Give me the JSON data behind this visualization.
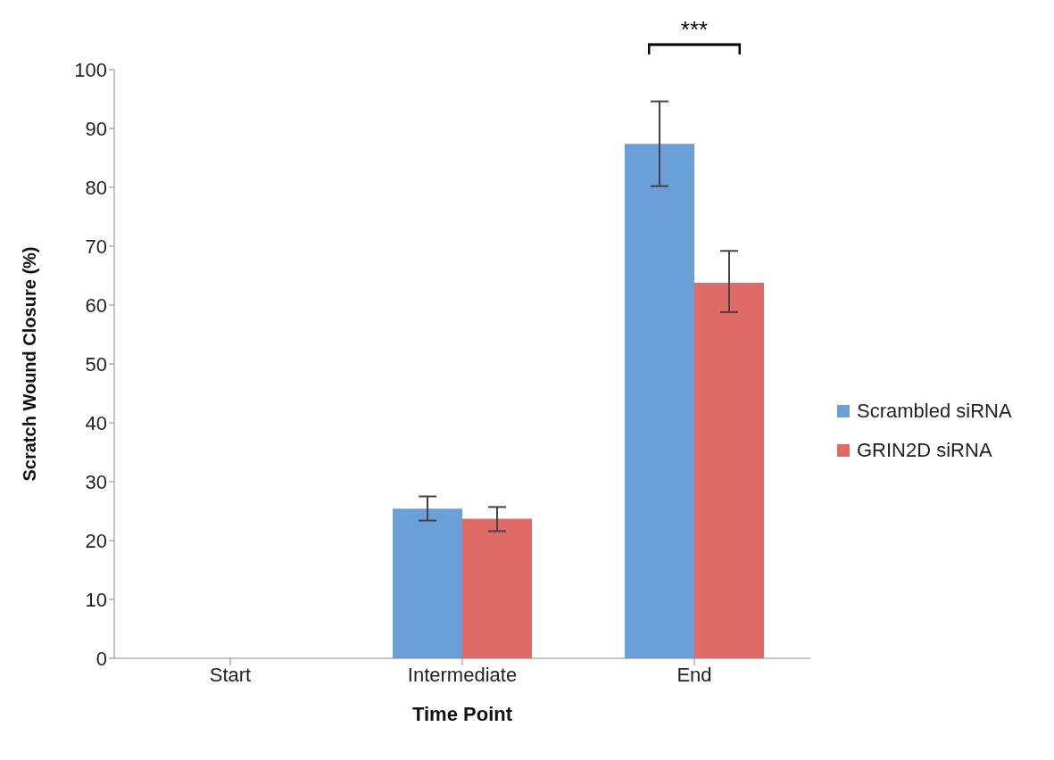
{
  "chart_data": {
    "type": "bar",
    "xlabel": "Time Point",
    "ylabel": "Scratch Wound Closure (%)",
    "categories": [
      "Start",
      "Intermediate",
      "End"
    ],
    "series": [
      {
        "name": "Scrambled siRNA",
        "color": "#6a9fd8",
        "values": [
          0,
          25.4,
          87.4
        ],
        "errors": [
          null,
          [
            23.4,
            27.5
          ],
          [
            80.2,
            94.6
          ]
        ]
      },
      {
        "name": "GRIN2D siRNA",
        "color": "#e06a66",
        "values": [
          0,
          23.7,
          63.8
        ],
        "errors": [
          null,
          [
            21.6,
            25.7
          ],
          [
            58.8,
            69.2
          ]
        ]
      }
    ],
    "ylim": [
      0,
      100
    ],
    "yticks": [
      0,
      10,
      20,
      30,
      40,
      50,
      60,
      70,
      80,
      90,
      100
    ],
    "legend": "right",
    "annotations": [
      "***"
    ]
  }
}
